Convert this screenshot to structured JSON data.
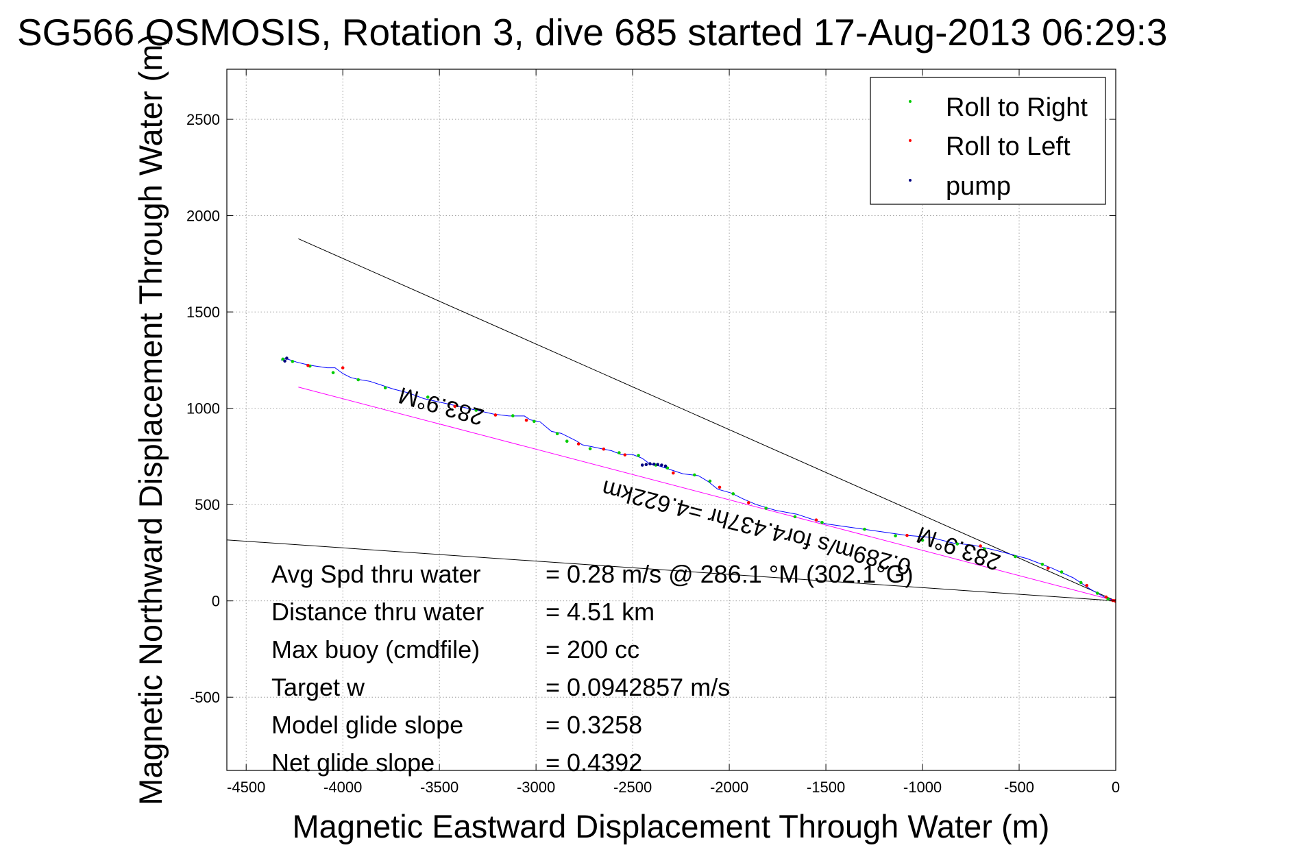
{
  "chart_data": {
    "type": "line",
    "title": "SG566 OSMOSIS, Rotation 3, dive 685 started 17-Aug-2013 06:29:3",
    "xlabel": "Magnetic Eastward Displacement Through Water (m)",
    "ylabel": "Magnetic Northward Displacement Through Water (m)",
    "xlim": [
      -4600,
      0
    ],
    "ylim": [
      -880,
      2760
    ],
    "xticks": [
      -4500,
      -4000,
      -3500,
      -3000,
      -2500,
      -2000,
      -1500,
      -1000,
      -500,
      0
    ],
    "yticks": [
      -500,
      0,
      500,
      1000,
      1500,
      2000,
      2500
    ],
    "grid": true,
    "legend_position": "top-right",
    "legend": [
      {
        "label": "Roll to Right",
        "color": "#00cc00"
      },
      {
        "label": "Roll to Left",
        "color": "#ff0000"
      },
      {
        "label": "pump",
        "color": "#000080"
      }
    ],
    "track": {
      "x": [
        0,
        -60,
        -130,
        -220,
        -330,
        -460,
        -610,
        -740,
        -840,
        -960,
        -1080,
        -1220,
        -1360,
        -1500,
        -1560,
        -1650,
        -1760,
        -1860,
        -1930,
        -1990,
        -2060,
        -2110,
        -2160,
        -2240,
        -2300,
        -2360,
        -2410,
        -2450,
        -2500,
        -2560,
        -2610,
        -2660,
        -2710,
        -2760,
        -2790,
        -2830,
        -2870,
        -2920,
        -2980,
        -3030,
        -3060,
        -3140,
        -3220,
        -3310,
        -3400,
        -3490,
        -3580,
        -3660,
        -3740,
        -3800,
        -3860,
        -3920,
        -3960,
        -4000,
        -4040,
        -4080,
        -4150,
        -4200,
        -4240,
        -4270,
        -4300,
        -4320
      ],
      "y": [
        0,
        20,
        60,
        120,
        170,
        220,
        260,
        290,
        300,
        330,
        340,
        360,
        380,
        400,
        420,
        450,
        470,
        500,
        530,
        560,
        580,
        620,
        650,
        660,
        680,
        700,
        710,
        740,
        760,
        760,
        780,
        790,
        800,
        810,
        830,
        850,
        870,
        880,
        930,
        940,
        960,
        960,
        970,
        990,
        1010,
        1030,
        1050,
        1080,
        1100,
        1120,
        1140,
        1150,
        1160,
        1180,
        1210,
        1210,
        1220,
        1230,
        1240,
        1250,
        1260,
        1250
      ],
      "color": "#0000ff"
    },
    "roll_right": {
      "x": [
        -40,
        -95,
        -180,
        -280,
        -380,
        -520,
        -680,
        -820,
        -1000,
        -1140,
        -1300,
        -1520,
        -1660,
        -1810,
        -1980,
        -2100,
        -2180,
        -2320,
        -2380,
        -2470,
        -2570,
        -2720,
        -2840,
        -2890,
        -3010,
        -3120,
        -3310,
        -3560,
        -3780,
        -3920,
        -4050,
        -4170,
        -4260,
        -4310
      ],
      "y": [
        10,
        40,
        95,
        150,
        190,
        230,
        270,
        296,
        315,
        338,
        372,
        407,
        437,
        481,
        556,
        622,
        654,
        690,
        705,
        755,
        769,
        790,
        829,
        868,
        932,
        961,
        990,
        1058,
        1106,
        1148,
        1185,
        1219,
        1243,
        1255
      ]
    },
    "roll_left": {
      "x": [
        -15,
        -50,
        -150,
        -350,
        -700,
        -1080,
        -1550,
        -1900,
        -2050,
        -2290,
        -2540,
        -2650,
        -2780,
        -3050,
        -3210,
        -3420,
        -4000,
        -4180
      ],
      "y": [
        2,
        20,
        80,
        170,
        285,
        340,
        420,
        510,
        590,
        664,
        758,
        788,
        815,
        938,
        965,
        1010,
        1210,
        1222
      ]
    },
    "pump": {
      "x": [
        -2330,
        -2350,
        -2370,
        -2390,
        -2410,
        -2430,
        -2450,
        -4290,
        -4300
      ],
      "y": [
        700,
        705,
        708,
        710,
        712,
        708,
        705,
        1260,
        1245
      ]
    },
    "reference_lines": [
      {
        "name": "upper",
        "x": [
          -4230,
          0
        ],
        "y": [
          1880,
          0
        ],
        "color": "#000000"
      },
      {
        "name": "lower",
        "x": [
          -4650,
          0
        ],
        "y": [
          320,
          0
        ],
        "color": "#000000"
      },
      {
        "name": "heading",
        "x": [
          -4230,
          0
        ],
        "y": [
          1110,
          0
        ],
        "color": "#ff00ff"
      }
    ],
    "annotations": [
      {
        "text": "283.9°M",
        "x": -3480,
        "y": 1050,
        "rotation_deg": 195.5
      },
      {
        "text": "283.9°M",
        "x": -800,
        "y": 310,
        "rotation_deg": 200
      },
      {
        "text": "0.289m/s for4.437hr =4.622km",
        "x": -1850,
        "y": 420,
        "rotation_deg": 194.5
      }
    ],
    "stats": [
      {
        "label": "Avg Spd thru water",
        "value": "=  0.28 m/s @ 286.1 °M (302.1°G)"
      },
      {
        "label": "Distance thru water",
        "value": "=  4.51 km"
      },
      {
        "label": "Max buoy (cmdfile)",
        "value": "= 200 cc"
      },
      {
        "label": "Target w",
        "value": "= 0.0942857 m/s"
      },
      {
        "label": "Model glide slope",
        "value": "= 0.3258"
      },
      {
        "label": "Net glide slope",
        "value": "= 0.4392"
      }
    ]
  }
}
